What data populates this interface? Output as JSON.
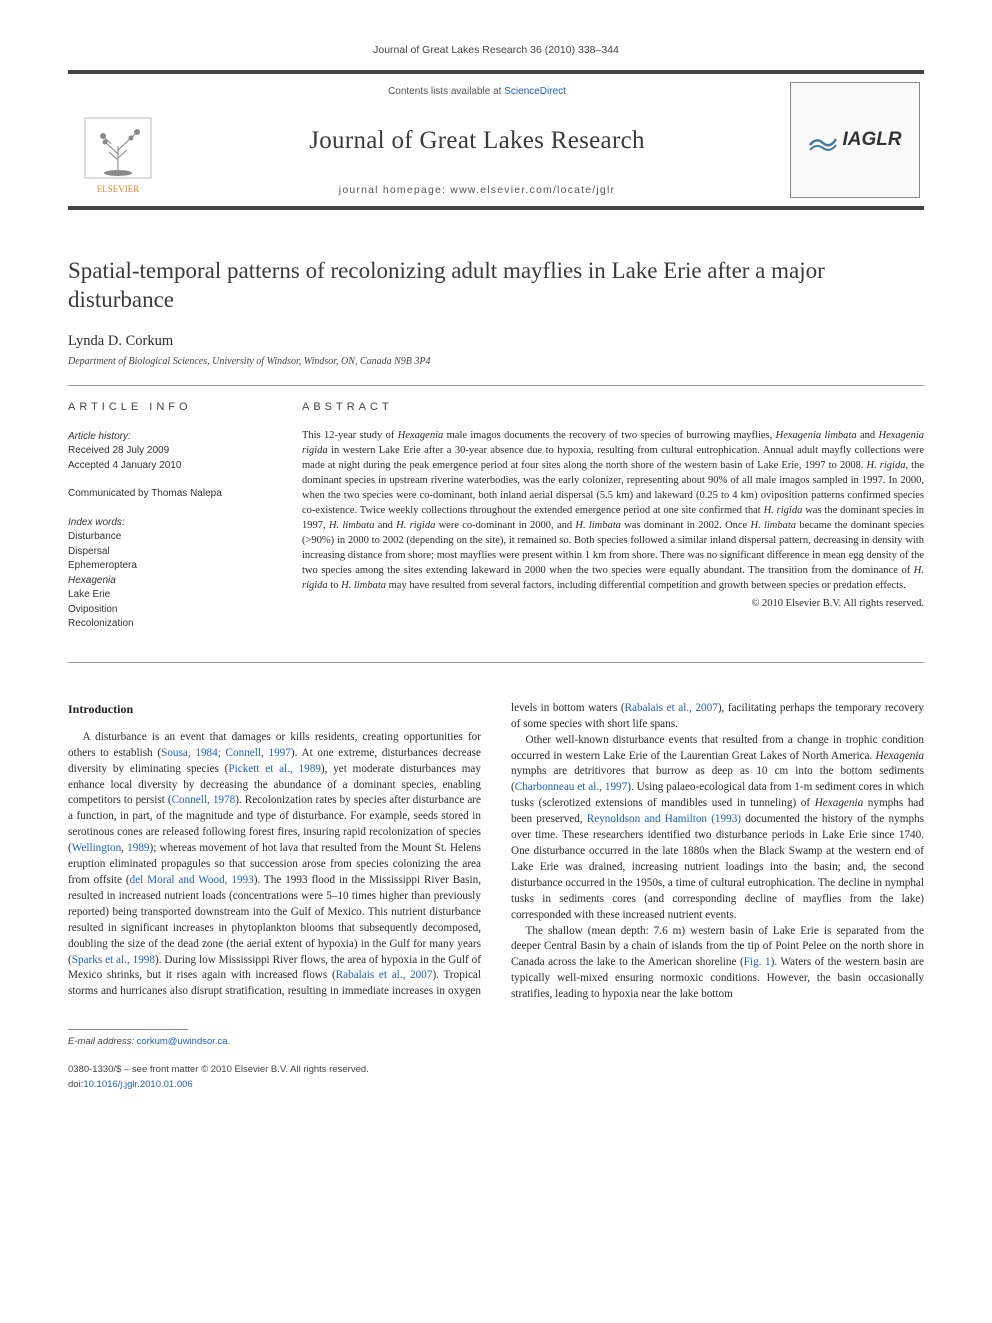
{
  "running_head": "Journal of Great Lakes Research 36 (2010) 338–344",
  "masthead": {
    "contents_prefix": "Contents lists available at ",
    "contents_link": "ScienceDirect",
    "journal_name": "Journal of Great Lakes Research",
    "homepage_prefix": "journal homepage: ",
    "homepage_url": "www.elsevier.com/locate/jglr",
    "cover_label": "IAGLR"
  },
  "title": "Spatial-temporal patterns of recolonizing adult mayflies in Lake Erie after a major disturbance",
  "author": "Lynda D. Corkum",
  "affiliation": "Department of Biological Sciences, University of Windsor, Windsor, ON, Canada N9B 3P4",
  "info": {
    "head": "ARTICLE INFO",
    "history_label": "Article history:",
    "received": "Received 28 July 2009",
    "accepted": "Accepted 4 January 2010",
    "communicated": "Communicated by Thomas Nalepa",
    "keywords_label": "Index words:",
    "keywords": [
      "Disturbance",
      "Dispersal",
      "Ephemeroptera",
      "Hexagenia",
      "Lake Erie",
      "Oviposition",
      "Recolonization"
    ]
  },
  "abstract": {
    "head": "ABSTRACT",
    "text_parts": [
      "This 12-year study of ",
      " male imagos documents the recovery of two species of burrowing mayflies, ",
      " and ",
      " in western Lake Erie after a 30-year absence due to hypoxia, resulting from cultural eutrophication. Annual adult mayfly collections were made at night during the peak emergence period at four sites along the north shore of the western basin of Lake Erie, 1997 to 2008. ",
      ", the dominant species in upstream riverine waterbodies, was the early colonizer, representing about 90% of all male imagos sampled in 1997. In 2000, when the two species were co-dominant, both inland aerial dispersal (5.5 km) and lakeward (0.25 to 4 km) oviposition patterns confirmed species co-existence. Twice weekly collections throughout the extended emergence period at one site confirmed that ",
      " was the dominant species in 1997, ",
      " and ",
      " were co-dominant in 2000, and ",
      " was dominant in 2002. Once ",
      " became the dominant species (>90%) in 2000 to 2002 (depending on the site), it remained so. Both species followed a similar inland dispersal pattern, decreasing in density with increasing distance from shore; most mayflies were present within 1 km from shore. There was no significant difference in mean egg density of the two species among the sites extending lakeward in 2000 when the two species were equally abundant. The transition from the dominance of ",
      " to ",
      " may have resulted from several factors, including differential competition and growth between species or predation effects."
    ],
    "italic_terms": [
      "Hexagenia",
      "Hexagenia limbata",
      "Hexagenia rigida",
      "H. rigida",
      "H. rigida",
      "H. limbata",
      "H. rigida",
      "H. limbata",
      "H. limbata",
      "H. rigida",
      "H. limbata"
    ],
    "copyright": "© 2010 Elsevier B.V. All rights reserved."
  },
  "introduction": {
    "head": "Introduction",
    "p1_a": "A disturbance is an event that damages or kills residents, creating opportunities for others to establish (",
    "p1_c1": "Sousa, 1984; Connell, 1997",
    "p1_b": "). At one extreme, disturbances decrease diversity by eliminating species (",
    "p1_c2": "Pickett et al., 1989",
    "p1_c": "), yet moderate disturbances may enhance local diversity by decreasing the abundance of a dominant species, enabling competitors to persist (",
    "p1_c3": "Connell, 1978",
    "p1_d": "). Recolonization rates by species after disturbance are a function, in part, of the magnitude and type of disturbance. For example, seeds stored in serotinous cones are released following forest fires, insuring rapid recolonization of species (",
    "p1_c4": "Wellington, 1989",
    "p1_e": "); whereas movement of hot lava that resulted from the Mount St. Helens eruption eliminated propagules so that succession arose from species colonizing the area from offsite (",
    "p1_c5": "del Moral and Wood, 1993",
    "p1_f": "). The 1993 flood in the Mississippi River Basin, resulted in increased nutrient loads (concentrations were 5–10 times higher than previously reported) being transported downstream into the Gulf of Mexico. This nutrient disturbance resulted in significant increases in phytoplankton blooms that subsequently decomposed, doubling the size of the dead zone (the aerial extent of hypoxia) in the Gulf for many years (",
    "p1_c6": "Sparks et al., 1998",
    "p1_g": "). During low Mississippi River flows, the area of hypoxia in the Gulf of Mexico shrinks, but it rises again with increased flows (",
    "p1_c7": "Rabalais et al., 2007",
    "p1_h": "). Tropical storms and hurricanes also disrupt stratification, resulting in immediate increases in oxygen levels in bottom waters (",
    "p1_c8": "Rabalais et al., 2007",
    "p1_i": "), facilitating perhaps the temporary recovery of some species with short life spans.",
    "p2_a": "Other well-known disturbance events that resulted from a change in trophic condition occurred in western Lake Erie of the Laurentian Great Lakes of North America. ",
    "p2_i1": "Hexagenia",
    "p2_b": " nymphs are detritivores that burrow as deep as 10 cm into the bottom sediments (",
    "p2_c1": "Charbonneau et al., 1997",
    "p2_c": "). Using palaeo-ecological data from 1-m sediment cores in which tusks (sclerotized extensions of mandibles used in tunneling) of ",
    "p2_i2": "Hexagenia",
    "p2_d": " nymphs had been preserved, ",
    "p2_c2": "Reynoldson and Hamilton (1993)",
    "p2_e": " documented the history of the nymphs over time. These researchers identified two disturbance periods in Lake Erie since 1740. One disturbance occurred in the late 1880s when the Black Swamp at the western end of Lake Erie was drained, increasing nutrient loadings into the basin; and, the second disturbance occurred in the 1950s, a time of cultural eutrophication. The decline in nymphal tusks in sediments cores (and corresponding decline of mayflies from the lake) corresponded with these increased nutrient events.",
    "p3_a": "The shallow (mean depth: 7.6 m) western basin of Lake Erie is separated from the deeper Central Basin by a chain of islands from the tip of Point Pelee on the north shore in Canada across the lake to the American shoreline (",
    "p3_c1": "Fig. 1",
    "p3_b": "). Waters of the western basin are typically well-mixed ensuring normoxic conditions. However, the basin occasionally stratifies, leading to hypoxia near the lake bottom"
  },
  "footer": {
    "email_label": "E-mail address: ",
    "email": "corkum@uwindsor.ca",
    "issn_line": "0380-1330/$ – see front matter © 2010 Elsevier B.V. All rights reserved.",
    "doi_prefix": "doi:",
    "doi": "10.1016/j.jglr.2010.01.006"
  },
  "colors": {
    "rule": "#999999",
    "link": "#2060c0",
    "text": "#2a2a2a",
    "elsevier_orange": "#ef7e2b",
    "elsevier_gray": "#8a8a8a"
  }
}
